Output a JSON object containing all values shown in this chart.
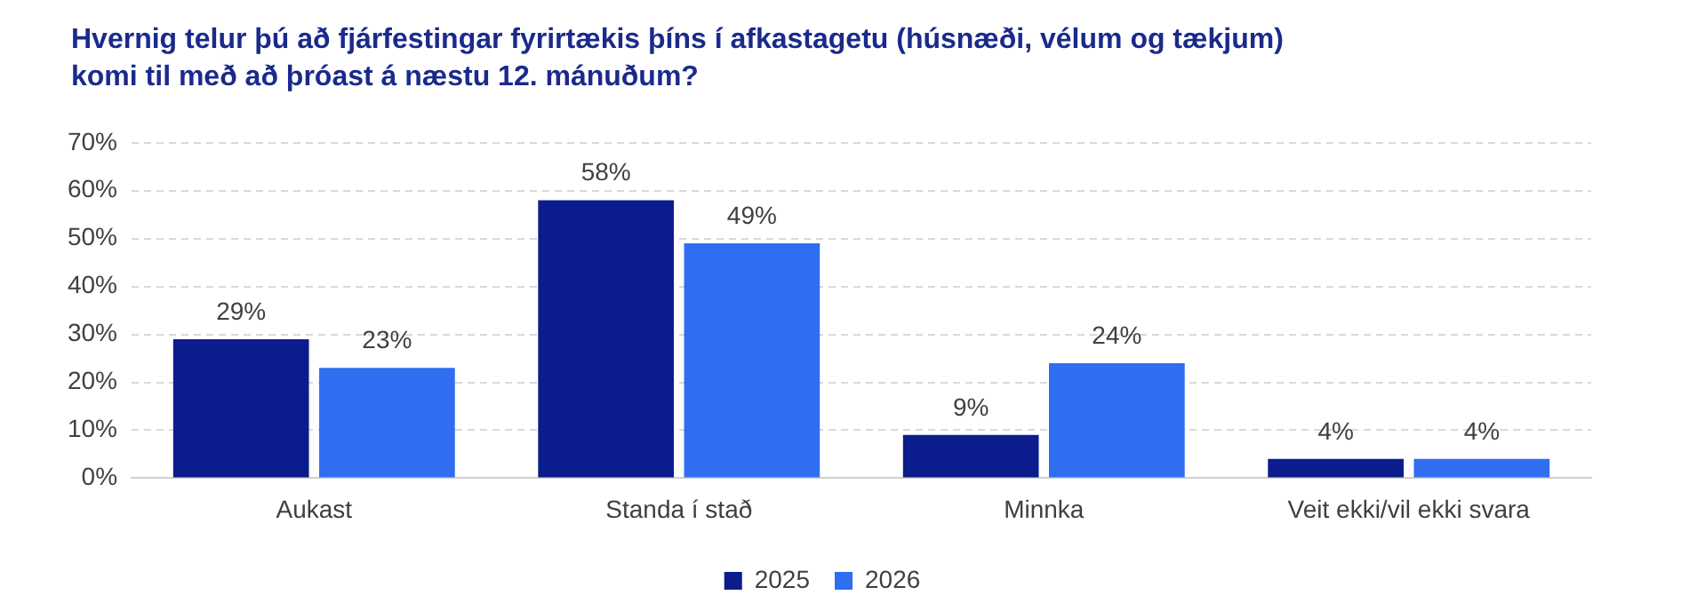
{
  "chart_data": {
    "type": "bar",
    "title": "Hvernig telur þú að fjárfestingar fyrirtækis þíns í afkastagetu (húsnæði, vélum og tækjum) komi til með að þróast á næstu 12. mánuðum?",
    "categories": [
      "Aukast",
      "Standa í stað",
      "Minnka",
      "Veit ekki/vil ekki svara"
    ],
    "series": [
      {
        "name": "2025",
        "color": "#0b1c8c",
        "values": [
          29,
          58,
          9,
          4
        ],
        "value_labels": [
          "29%",
          "58%",
          "9%",
          "4%"
        ]
      },
      {
        "name": "2026",
        "color": "#2f6ef0",
        "values": [
          23,
          49,
          24,
          4
        ],
        "value_labels": [
          "23%",
          "49%",
          "24%",
          "4%"
        ]
      }
    ],
    "ylim": [
      0,
      70
    ],
    "yticks": [
      {
        "value": 0,
        "label": "0%"
      },
      {
        "value": 10,
        "label": "10%"
      },
      {
        "value": 20,
        "label": "20%"
      },
      {
        "value": 30,
        "label": "30%"
      },
      {
        "value": 40,
        "label": "40%"
      },
      {
        "value": 50,
        "label": "50%"
      },
      {
        "value": 60,
        "label": "60%"
      },
      {
        "value": 70,
        "label": "70%"
      }
    ],
    "grid": "y",
    "legend": "bottom"
  }
}
